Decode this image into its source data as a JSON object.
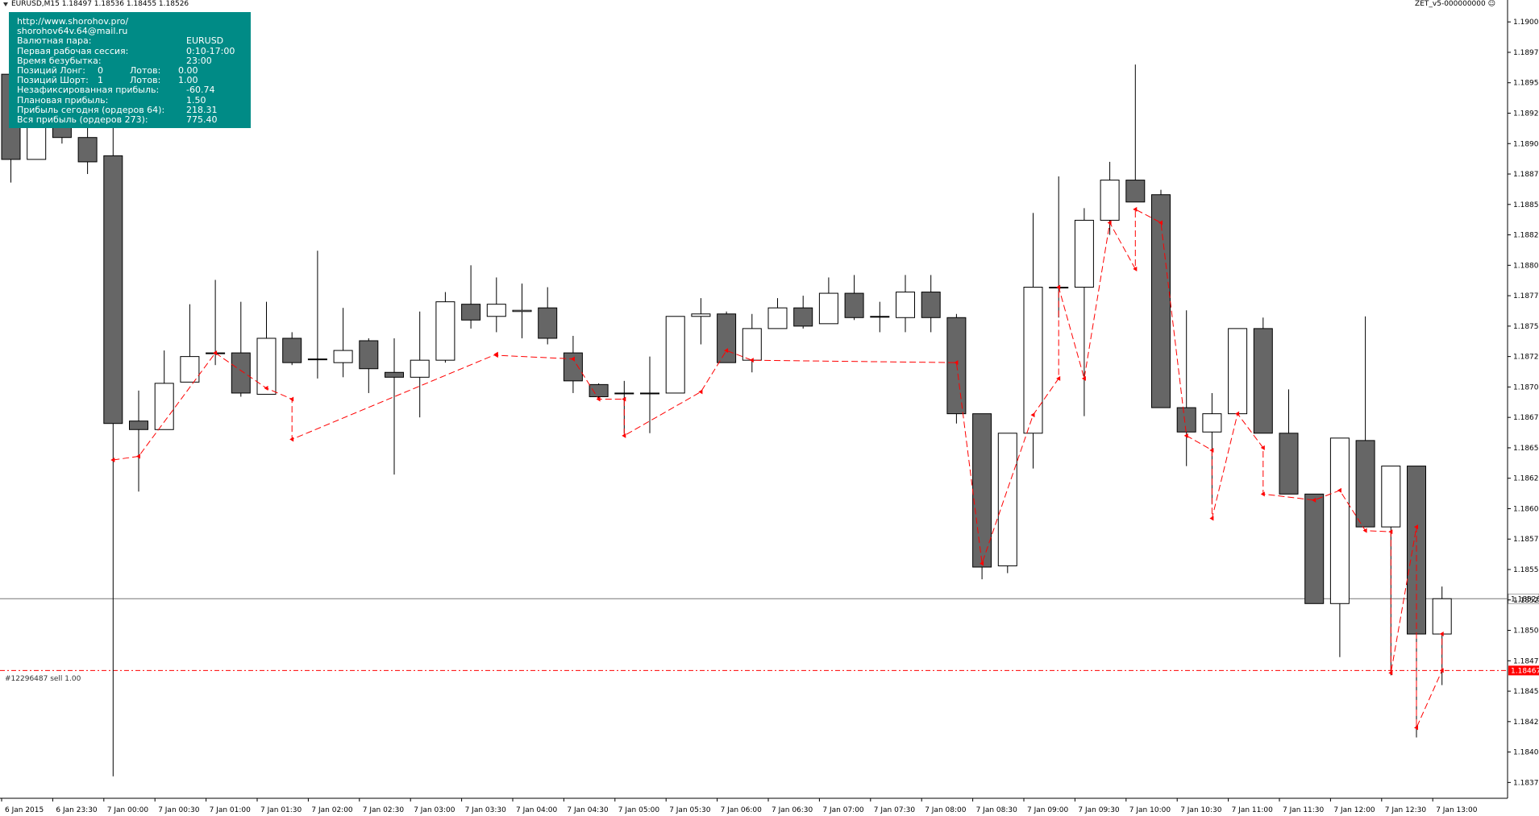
{
  "header": {
    "symbol_info": "EURUSD,M15  1.18497 1.18536 1.18455 1.18526",
    "ea_label": "ZET_v5-000000000"
  },
  "info_panel": {
    "url": "http://www.shorohov.pro/",
    "email": "shorohov64v.64@mail.ru",
    "pair_label": "Валютная пара:",
    "pair_value": "EURUSD",
    "session_label": "Первая рабочая сессия:",
    "session_value": "0:10-17:00",
    "breakeven_label": "Время безубытка:",
    "breakeven_value": "23:00",
    "long_label": "Позиций Лонг:",
    "long_count": "0",
    "long_lots_label": "Лотов:",
    "long_lots": "0.00",
    "short_label": "Позиций Шорт:",
    "short_count": "1",
    "short_lots_label": "Лотов:",
    "short_lots": "1.00",
    "unrealized_label": "Незафиксированная прибыль:",
    "unrealized_value": "-60.74",
    "planned_label": "Плановая прибыль:",
    "planned_value": "1.50",
    "today_label": "Прибыль сегодня (ордеров 64):",
    "today_value": "218.31",
    "total_label": "Вся прибыль (ордеров 273):",
    "total_value": "775.40"
  },
  "order_line": {
    "label": "#12296487 sell 1.00",
    "price": 1.18467,
    "price_text": "1.18467"
  },
  "bid_line": {
    "price": 1.18526,
    "price_text": "1.18526"
  },
  "colors": {
    "bear_fill": "#666666",
    "bull_fill": "#ffffff",
    "candle_outline": "#000000",
    "trade_line": "#ff0000",
    "info_bg": "#008b86",
    "order_tag_bg": "#ff0000"
  },
  "chart_data": {
    "type": "candlestick",
    "symbol": "EURUSD",
    "timeframe": "M15",
    "ylim": [
      1.18362,
      1.19018
    ],
    "y_ticks": [
      "1.19000",
      "1.18975",
      "1.18950",
      "1.18925",
      "1.18900",
      "1.18875",
      "1.18850",
      "1.18825",
      "1.18800",
      "1.18775",
      "1.18750",
      "1.18725",
      "1.18700",
      "1.18675",
      "1.18650",
      "1.18625",
      "1.18600",
      "1.18575",
      "1.18550",
      "1.18525",
      "1.18500",
      "1.18475",
      "1.18450",
      "1.18425",
      "1.18400",
      "1.18375"
    ],
    "x_labels": [
      "6 Jan 2015",
      "6 Jan 23:30",
      "7 Jan 00:00",
      "7 Jan 00:30",
      "7 Jan 01:00",
      "7 Jan 01:30",
      "7 Jan 02:00",
      "7 Jan 02:30",
      "7 Jan 03:00",
      "7 Jan 03:30",
      "7 Jan 04:00",
      "7 Jan 04:30",
      "7 Jan 05:00",
      "7 Jan 05:30",
      "7 Jan 06:00",
      "7 Jan 06:30",
      "7 Jan 07:00",
      "7 Jan 07:30",
      "7 Jan 08:00",
      "7 Jan 08:30",
      "7 Jan 09:00",
      "7 Jan 09:30",
      "7 Jan 10:00",
      "7 Jan 10:30",
      "7 Jan 11:00",
      "7 Jan 11:30",
      "7 Jan 12:00",
      "7 Jan 12:30",
      "7 Jan 13:00"
    ],
    "candles": [
      {
        "o": 1.18957,
        "h": 1.18995,
        "l": 1.18868,
        "c": 1.18887
      },
      {
        "o": 1.18887,
        "h": 1.1896,
        "l": 1.18887,
        "c": 1.1896
      },
      {
        "o": 1.18925,
        "h": 1.1896,
        "l": 1.189,
        "c": 1.18905
      },
      {
        "o": 1.18905,
        "h": 1.18932,
        "l": 1.18875,
        "c": 1.18885
      },
      {
        "o": 1.1889,
        "h": 1.1892,
        "l": 1.1838,
        "c": 1.1867
      },
      {
        "o": 1.18672,
        "h": 1.18697,
        "l": 1.18614,
        "c": 1.18665
      },
      {
        "o": 1.18665,
        "h": 1.1873,
        "l": 1.18665,
        "c": 1.18703
      },
      {
        "o": 1.18704,
        "h": 1.18768,
        "l": 1.18704,
        "c": 1.18725
      },
      {
        "o": 1.18728,
        "h": 1.18788,
        "l": 1.18718,
        "c": 1.18728
      },
      {
        "o": 1.18728,
        "h": 1.1877,
        "l": 1.18692,
        "c": 1.18695
      },
      {
        "o": 1.18694,
        "h": 1.1877,
        "l": 1.18694,
        "c": 1.1874
      },
      {
        "o": 1.1874,
        "h": 1.18745,
        "l": 1.18718,
        "c": 1.1872
      },
      {
        "o": 1.18723,
        "h": 1.18812,
        "l": 1.18707,
        "c": 1.18723
      },
      {
        "o": 1.1872,
        "h": 1.18765,
        "l": 1.18708,
        "c": 1.1873
      },
      {
        "o": 1.18738,
        "h": 1.1874,
        "l": 1.18695,
        "c": 1.18715
      },
      {
        "o": 1.18712,
        "h": 1.1874,
        "l": 1.18628,
        "c": 1.18708
      },
      {
        "o": 1.18708,
        "h": 1.18762,
        "l": 1.18675,
        "c": 1.18722
      },
      {
        "o": 1.18722,
        "h": 1.18778,
        "l": 1.1872,
        "c": 1.1877
      },
      {
        "o": 1.18768,
        "h": 1.188,
        "l": 1.18748,
        "c": 1.18755
      },
      {
        "o": 1.18758,
        "h": 1.1879,
        "l": 1.18745,
        "c": 1.18768
      },
      {
        "o": 1.18762,
        "h": 1.18785,
        "l": 1.1874,
        "c": 1.18763
      },
      {
        "o": 1.18765,
        "h": 1.18782,
        "l": 1.18735,
        "c": 1.1874
      },
      {
        "o": 1.18728,
        "h": 1.18742,
        "l": 1.18695,
        "c": 1.18705
      },
      {
        "o": 1.18702,
        "h": 1.18703,
        "l": 1.1869,
        "c": 1.18692
      },
      {
        "o": 1.18695,
        "h": 1.18705,
        "l": 1.18662,
        "c": 1.18695
      },
      {
        "o": 1.18695,
        "h": 1.18725,
        "l": 1.18662,
        "c": 1.18695
      },
      {
        "o": 1.18695,
        "h": 1.18758,
        "l": 1.18695,
        "c": 1.18758
      },
      {
        "o": 1.18758,
        "h": 1.18773,
        "l": 1.18735,
        "c": 1.1876
      },
      {
        "o": 1.1876,
        "h": 1.18762,
        "l": 1.1872,
        "c": 1.1872
      },
      {
        "o": 1.18722,
        "h": 1.1876,
        "l": 1.18712,
        "c": 1.18748
      },
      {
        "o": 1.18748,
        "h": 1.18773,
        "l": 1.18748,
        "c": 1.18765
      },
      {
        "o": 1.18765,
        "h": 1.18775,
        "l": 1.18748,
        "c": 1.1875
      },
      {
        "o": 1.18752,
        "h": 1.1879,
        "l": 1.18752,
        "c": 1.18777
      },
      {
        "o": 1.18777,
        "h": 1.18792,
        "l": 1.18755,
        "c": 1.18757
      },
      {
        "o": 1.18758,
        "h": 1.1877,
        "l": 1.18745,
        "c": 1.18758
      },
      {
        "o": 1.18757,
        "h": 1.18792,
        "l": 1.18745,
        "c": 1.18778
      },
      {
        "o": 1.18778,
        "h": 1.18792,
        "l": 1.18745,
        "c": 1.18757
      },
      {
        "o": 1.18757,
        "h": 1.1876,
        "l": 1.1867,
        "c": 1.18678
      },
      {
        "o": 1.18678,
        "h": 1.18678,
        "l": 1.18542,
        "c": 1.18552
      },
      {
        "o": 1.18553,
        "h": 1.18662,
        "l": 1.18547,
        "c": 1.18662
      },
      {
        "o": 1.18662,
        "h": 1.18843,
        "l": 1.18633,
        "c": 1.18782
      },
      {
        "o": 1.18782,
        "h": 1.18873,
        "l": 1.18757,
        "c": 1.18782
      },
      {
        "o": 1.18782,
        "h": 1.18847,
        "l": 1.18676,
        "c": 1.18837
      },
      {
        "o": 1.18837,
        "h": 1.18885,
        "l": 1.18825,
        "c": 1.1887
      },
      {
        "o": 1.1887,
        "h": 1.18965,
        "l": 1.18852,
        "c": 1.18852
      },
      {
        "o": 1.18858,
        "h": 1.18862,
        "l": 1.18683,
        "c": 1.18683
      },
      {
        "o": 1.18683,
        "h": 1.18763,
        "l": 1.18635,
        "c": 1.18663
      },
      {
        "o": 1.18663,
        "h": 1.18695,
        "l": 1.18604,
        "c": 1.18678
      },
      {
        "o": 1.18678,
        "h": 1.18748,
        "l": 1.18678,
        "c": 1.18748
      },
      {
        "o": 1.18748,
        "h": 1.18757,
        "l": 1.18662,
        "c": 1.18662
      },
      {
        "o": 1.18662,
        "h": 1.18698,
        "l": 1.18612,
        "c": 1.18612
      },
      {
        "o": 1.18612,
        "h": 1.18612,
        "l": 1.18522,
        "c": 1.18522
      },
      {
        "o": 1.18522,
        "h": 1.18658,
        "l": 1.18478,
        "c": 1.18658
      },
      {
        "o": 1.18656,
        "h": 1.18758,
        "l": 1.18585,
        "c": 1.18585
      },
      {
        "o": 1.18585,
        "h": 1.18635,
        "l": 1.18463,
        "c": 1.18635
      },
      {
        "o": 1.18635,
        "h": 1.18635,
        "l": 1.18412,
        "c": 1.18497
      },
      {
        "o": 1.18497,
        "h": 1.18536,
        "l": 1.18455,
        "c": 1.18526
      }
    ],
    "trade_path": [
      [
        4,
        1.1864
      ],
      [
        5,
        1.18643
      ],
      [
        8,
        1.18728
      ],
      [
        10,
        1.18699
      ],
      [
        11,
        1.1869
      ],
      [
        11,
        1.18657
      ],
      [
        19,
        1.18727
      ],
      [
        19,
        1.18726
      ],
      [
        22,
        1.18723
      ],
      [
        23,
        1.1869
      ],
      [
        24,
        1.1869
      ],
      [
        24,
        1.1866
      ],
      [
        27,
        1.18696
      ],
      [
        28,
        1.1873
      ],
      [
        29,
        1.18722
      ],
      [
        37,
        1.1872
      ],
      [
        38,
        1.18555
      ],
      [
        40,
        1.18677
      ],
      [
        41,
        1.18707
      ],
      [
        41,
        1.18782
      ],
      [
        42,
        1.18707
      ],
      [
        43,
        1.18835
      ],
      [
        44,
        1.18797
      ],
      [
        44,
        1.18846
      ],
      [
        45,
        1.18835
      ],
      [
        46,
        1.1866
      ],
      [
        47,
        1.18648
      ],
      [
        47,
        1.18592
      ],
      [
        48,
        1.18678
      ],
      [
        49,
        1.1865
      ],
      [
        49,
        1.18612
      ],
      [
        51,
        1.18607
      ],
      [
        52,
        1.18615
      ],
      [
        53,
        1.18582
      ],
      [
        54,
        1.18581
      ],
      [
        54,
        1.18465
      ],
      [
        55,
        1.18585
      ],
      [
        55,
        1.1842
      ],
      [
        56,
        1.18467
      ],
      [
        56,
        1.18497
      ]
    ]
  }
}
